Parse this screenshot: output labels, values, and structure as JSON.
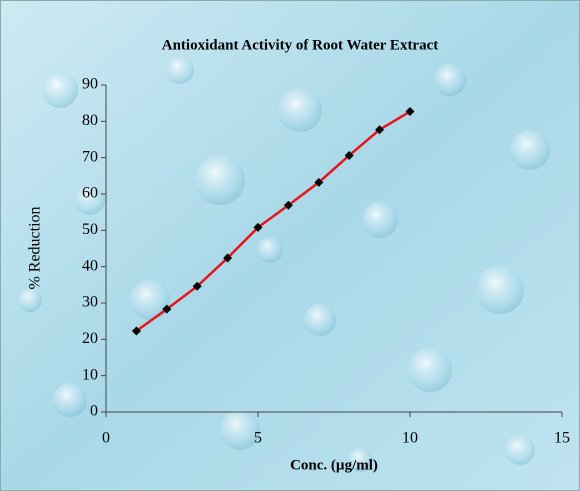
{
  "chart_data": {
    "type": "line",
    "title": "Antioxidant Activity of  Root Water Extract",
    "x_label": "Conc. (µg/ml)",
    "y_label": "% Reduction",
    "x": [
      1,
      2,
      3,
      4,
      5,
      6,
      7,
      8,
      9,
      10
    ],
    "series": [
      {
        "color": "#e8141b",
        "marker_color": "#000000",
        "values": [
          22.3,
          28.3,
          34.6,
          42.4,
          50.8,
          56.9,
          63.2,
          70.6,
          77.7,
          82.7
        ]
      }
    ],
    "xlim": [
      0,
      15
    ],
    "xticks": [
      0,
      5,
      10,
      15
    ],
    "ylim": [
      0,
      90
    ],
    "yticks": [
      0,
      10,
      20,
      30,
      40,
      50,
      60,
      70,
      80,
      90
    ]
  }
}
